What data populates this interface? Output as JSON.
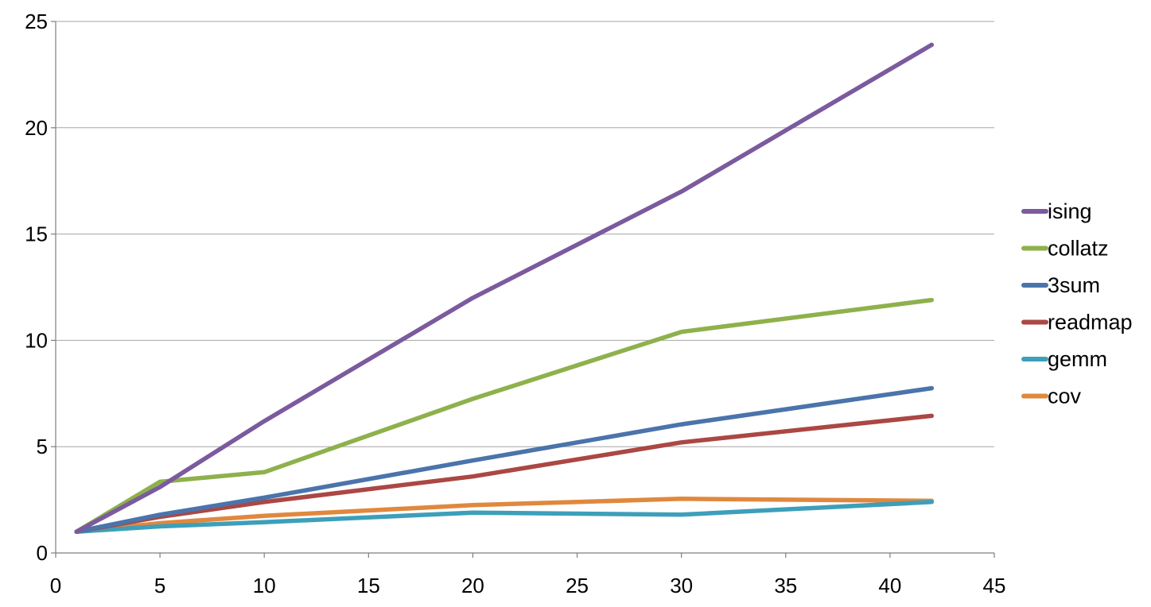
{
  "chart_data": {
    "type": "line",
    "title": "",
    "xlabel": "",
    "ylabel": "",
    "x": [
      1,
      5,
      10,
      20,
      30,
      42
    ],
    "xlim": [
      0,
      45
    ],
    "ylim": [
      0,
      25
    ],
    "xticks": [
      0,
      5,
      10,
      15,
      20,
      25,
      30,
      35,
      40,
      45
    ],
    "yticks": [
      0,
      5,
      10,
      15,
      20,
      25
    ],
    "grid": "horizontal",
    "legend_position": "right",
    "series": [
      {
        "name": "ising",
        "color": "#7b5a9e",
        "values": [
          1.0,
          3.1,
          6.2,
          12.0,
          17.0,
          23.9
        ]
      },
      {
        "name": "collatz",
        "color": "#8eb14c",
        "values": [
          1.0,
          3.35,
          3.8,
          7.25,
          10.4,
          11.9
        ]
      },
      {
        "name": "3sum",
        "color": "#4a74ab",
        "values": [
          1.0,
          1.8,
          2.6,
          4.35,
          6.05,
          7.75
        ]
      },
      {
        "name": "readmap",
        "color": "#ab4744",
        "values": [
          1.0,
          1.7,
          2.4,
          3.6,
          5.2,
          6.45
        ]
      },
      {
        "name": "gemm",
        "color": "#3d9fba",
        "values": [
          1.0,
          1.25,
          1.45,
          1.9,
          1.8,
          2.4
        ]
      },
      {
        "name": "cov",
        "color": "#e0883e",
        "values": [
          1.0,
          1.4,
          1.75,
          2.25,
          2.55,
          2.45
        ]
      }
    ]
  }
}
